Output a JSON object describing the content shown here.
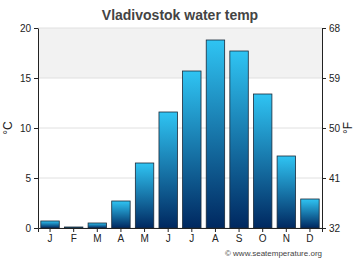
{
  "chart_data": {
    "type": "bar",
    "title": "Vladivostok water temp",
    "categories": [
      "J",
      "F",
      "M",
      "A",
      "M",
      "J",
      "J",
      "A",
      "S",
      "O",
      "N",
      "D"
    ],
    "values": [
      0.7,
      0.1,
      0.5,
      2.7,
      6.5,
      11.6,
      15.7,
      18.8,
      17.7,
      13.4,
      7.2,
      2.9
    ],
    "ylabel": "°C",
    "y2label": "°F",
    "ylim": [
      0,
      20
    ],
    "yticks": [
      0,
      5,
      10,
      15,
      20
    ],
    "y2lim": [
      32,
      68
    ],
    "y2ticks": [
      32,
      41,
      50,
      59,
      68
    ],
    "color": "#2fc4f3",
    "grid": true,
    "annotations": [
      "© www.seatemperature.org"
    ]
  }
}
